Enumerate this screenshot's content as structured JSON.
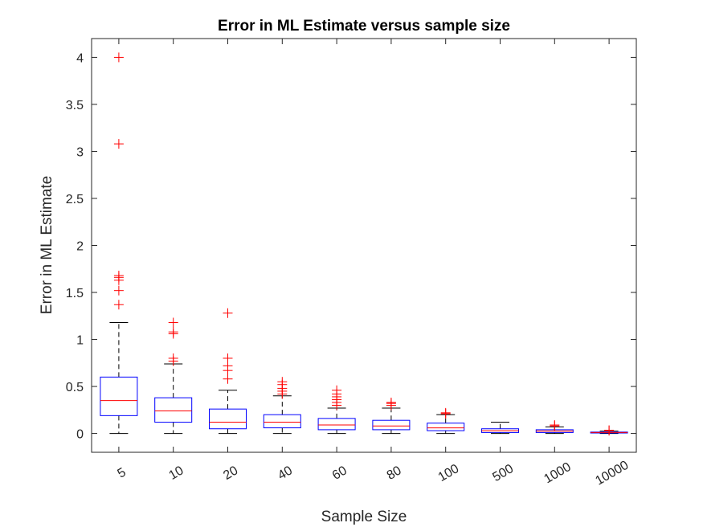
{
  "chart_data": {
    "type": "boxplot",
    "title": "Error in ML Estimate versus sample size",
    "xlabel": "Sample Size",
    "ylabel": "Error in ML Estimate",
    "ylim": [
      -0.2,
      4.2
    ],
    "yticks": [
      0,
      0.5,
      1,
      1.5,
      2,
      2.5,
      3,
      3.5,
      4
    ],
    "ytick_labels": [
      "0",
      "0.5",
      "1",
      "1.5",
      "2",
      "2.5",
      "3",
      "3.5",
      "4"
    ],
    "categories": [
      "5",
      "10",
      "20",
      "40",
      "60",
      "80",
      "100",
      "500",
      "1000",
      "10000"
    ],
    "grid": false,
    "colors": {
      "box": "#0000ff",
      "median": "#ff0000",
      "whisker": "#000000",
      "outlier": "#ff0000",
      "axes": "#262626"
    },
    "boxes": [
      {
        "category": "5",
        "q1": 0.19,
        "median": 0.35,
        "q3": 0.6,
        "whisker_low": 0.0,
        "whisker_high": 1.18,
        "outliers": [
          1.37,
          1.52,
          1.63,
          1.66,
          1.68,
          3.08,
          4.0
        ]
      },
      {
        "category": "10",
        "q1": 0.12,
        "median": 0.24,
        "q3": 0.38,
        "whisker_low": 0.0,
        "whisker_high": 0.74,
        "outliers": [
          0.77,
          0.8,
          1.06,
          1.08,
          1.18
        ]
      },
      {
        "category": "20",
        "q1": 0.05,
        "median": 0.12,
        "q3": 0.26,
        "whisker_low": 0.0,
        "whisker_high": 0.46,
        "outliers": [
          0.58,
          0.67,
          0.72,
          0.8,
          1.28
        ]
      },
      {
        "category": "40",
        "q1": 0.06,
        "median": 0.12,
        "q3": 0.2,
        "whisker_low": 0.0,
        "whisker_high": 0.4,
        "outliers": [
          0.42,
          0.45,
          0.48,
          0.52,
          0.55
        ]
      },
      {
        "category": "60",
        "q1": 0.04,
        "median": 0.09,
        "q3": 0.16,
        "whisker_low": 0.0,
        "whisker_high": 0.27,
        "outliers": [
          0.3,
          0.33,
          0.36,
          0.39,
          0.42,
          0.46
        ]
      },
      {
        "category": "80",
        "q1": 0.04,
        "median": 0.08,
        "q3": 0.14,
        "whisker_low": 0.0,
        "whisker_high": 0.27,
        "outliers": [
          0.3,
          0.32,
          0.33
        ]
      },
      {
        "category": "100",
        "q1": 0.03,
        "median": 0.06,
        "q3": 0.11,
        "whisker_low": 0.0,
        "whisker_high": 0.2,
        "outliers": [
          0.21,
          0.22
        ]
      },
      {
        "category": "500",
        "q1": 0.01,
        "median": 0.03,
        "q3": 0.05,
        "whisker_low": 0.0,
        "whisker_high": 0.12,
        "outliers": []
      },
      {
        "category": "1000",
        "q1": 0.01,
        "median": 0.025,
        "q3": 0.04,
        "whisker_low": 0.0,
        "whisker_high": 0.07,
        "outliers": [
          0.08,
          0.09
        ]
      },
      {
        "category": "10000",
        "q1": 0.005,
        "median": 0.01,
        "q3": 0.015,
        "whisker_low": 0.0,
        "whisker_high": 0.025,
        "outliers": [
          0.03,
          0.035
        ]
      }
    ]
  }
}
